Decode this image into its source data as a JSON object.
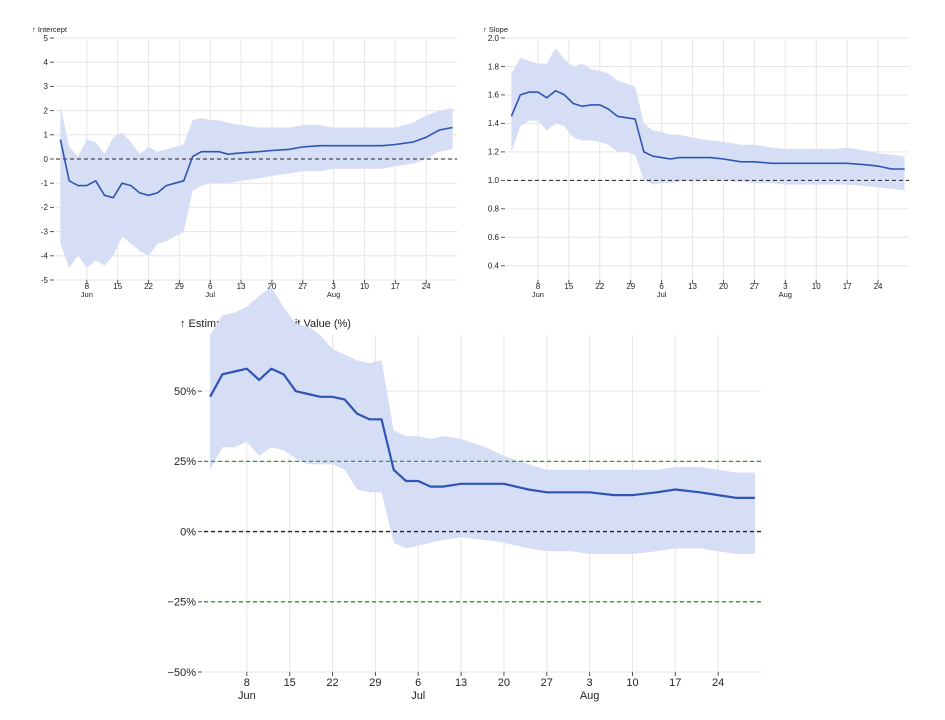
{
  "colors": {
    "band": "#d6def5",
    "line": "#2f55b3",
    "reference": "#222222",
    "threshold": "#2e9e2e",
    "grid": "#e6e6e6"
  },
  "x_axis_ticks": [
    "8",
    "15",
    "22",
    "29",
    "6",
    "13",
    "20",
    "27",
    "3",
    "10",
    "17",
    "24"
  ],
  "x_axis_months": [
    "Jun",
    "Jul",
    "Aug"
  ],
  "chart_data": [
    {
      "type": "area",
      "title": "↑ Intercept",
      "xlabel": "",
      "ylabel": "Intercept",
      "ylim": [
        -5,
        5
      ],
      "yticks": [
        "-5",
        "-4",
        "-3",
        "-2",
        "-1",
        "0",
        "1",
        "2",
        "3",
        "4",
        "5"
      ],
      "reference_lines": [
        {
          "y": 0,
          "style": "dashed",
          "color": "#222222"
        }
      ],
      "x": [
        "2023-06-02",
        "2023-06-04",
        "2023-06-06",
        "2023-06-08",
        "2023-06-10",
        "2023-06-12",
        "2023-06-14",
        "2023-06-16",
        "2023-06-18",
        "2023-06-20",
        "2023-06-22",
        "2023-06-24",
        "2023-06-26",
        "2023-06-28",
        "2023-06-30",
        "2023-07-02",
        "2023-07-04",
        "2023-07-06",
        "2023-07-08",
        "2023-07-10",
        "2023-07-13",
        "2023-07-17",
        "2023-07-20",
        "2023-07-24",
        "2023-07-27",
        "2023-07-31",
        "2023-08-03",
        "2023-08-07",
        "2023-08-10",
        "2023-08-14",
        "2023-08-17",
        "2023-08-21",
        "2023-08-24",
        "2023-08-27",
        "2023-08-30"
      ],
      "series": [
        {
          "role": "estimate",
          "values": [
            0.8,
            -0.9,
            -1.1,
            -1.1,
            -0.9,
            -1.5,
            -1.6,
            -1.0,
            -1.1,
            -1.4,
            -1.5,
            -1.4,
            -1.1,
            -1.0,
            -0.9,
            0.1,
            0.3,
            0.3,
            0.3,
            0.2,
            0.25,
            0.3,
            0.35,
            0.4,
            0.5,
            0.55,
            0.55,
            0.55,
            0.55,
            0.55,
            0.6,
            0.7,
            0.9,
            1.2,
            1.3
          ]
        },
        {
          "role": "upper",
          "values": [
            2.2,
            0.5,
            0.1,
            0.8,
            0.7,
            0.2,
            0.9,
            1.1,
            0.7,
            0.2,
            0.5,
            0.3,
            0.4,
            0.5,
            0.6,
            1.6,
            1.7,
            1.6,
            1.6,
            1.5,
            1.4,
            1.3,
            1.3,
            1.3,
            1.4,
            1.4,
            1.3,
            1.3,
            1.3,
            1.3,
            1.3,
            1.5,
            1.8,
            2.0,
            2.1
          ]
        },
        {
          "role": "lower",
          "values": [
            -3.5,
            -4.5,
            -4.0,
            -4.5,
            -4.2,
            -4.4,
            -4.0,
            -3.2,
            -3.5,
            -3.8,
            -4.0,
            -3.5,
            -3.4,
            -3.2,
            -3.0,
            -1.3,
            -1.1,
            -1.0,
            -1.0,
            -1.0,
            -0.9,
            -0.8,
            -0.7,
            -0.6,
            -0.5,
            -0.5,
            -0.4,
            -0.4,
            -0.4,
            -0.4,
            -0.3,
            -0.2,
            0.0,
            0.3,
            0.4
          ]
        }
      ]
    },
    {
      "type": "area",
      "title": "↑ Slope",
      "xlabel": "",
      "ylabel": "Slope",
      "ylim": [
        0.3,
        2.0
      ],
      "yticks": [
        "0.4",
        "0.6",
        "0.8",
        "1.0",
        "1.2",
        "1.4",
        "1.6",
        "1.8",
        "2.0"
      ],
      "reference_lines": [
        {
          "y": 1.0,
          "style": "dashed",
          "color": "#222222"
        }
      ],
      "x": [
        "2023-06-02",
        "2023-06-04",
        "2023-06-06",
        "2023-06-08",
        "2023-06-10",
        "2023-06-12",
        "2023-06-14",
        "2023-06-16",
        "2023-06-18",
        "2023-06-20",
        "2023-06-22",
        "2023-06-24",
        "2023-06-26",
        "2023-06-28",
        "2023-06-30",
        "2023-07-02",
        "2023-07-04",
        "2023-07-06",
        "2023-07-08",
        "2023-07-10",
        "2023-07-13",
        "2023-07-17",
        "2023-07-20",
        "2023-07-24",
        "2023-07-27",
        "2023-07-31",
        "2023-08-03",
        "2023-08-07",
        "2023-08-10",
        "2023-08-14",
        "2023-08-17",
        "2023-08-21",
        "2023-08-24",
        "2023-08-27",
        "2023-08-30"
      ],
      "series": [
        {
          "role": "estimate",
          "values": [
            1.45,
            1.6,
            1.62,
            1.62,
            1.58,
            1.63,
            1.6,
            1.54,
            1.52,
            1.53,
            1.53,
            1.5,
            1.45,
            1.44,
            1.43,
            1.2,
            1.17,
            1.16,
            1.15,
            1.16,
            1.16,
            1.16,
            1.15,
            1.13,
            1.13,
            1.12,
            1.12,
            1.12,
            1.12,
            1.12,
            1.12,
            1.11,
            1.1,
            1.08,
            1.08
          ]
        },
        {
          "role": "upper",
          "values": [
            1.75,
            1.86,
            1.84,
            1.82,
            1.82,
            1.93,
            1.85,
            1.8,
            1.82,
            1.78,
            1.77,
            1.75,
            1.7,
            1.68,
            1.66,
            1.4,
            1.35,
            1.34,
            1.32,
            1.32,
            1.3,
            1.28,
            1.27,
            1.25,
            1.25,
            1.23,
            1.22,
            1.22,
            1.22,
            1.22,
            1.23,
            1.21,
            1.19,
            1.18,
            1.17
          ]
        },
        {
          "role": "lower",
          "values": [
            1.2,
            1.38,
            1.42,
            1.42,
            1.35,
            1.4,
            1.38,
            1.3,
            1.28,
            1.28,
            1.27,
            1.25,
            1.2,
            1.2,
            1.18,
            1.0,
            0.97,
            0.98,
            0.98,
            0.99,
            1.0,
            1.0,
            1.0,
            0.99,
            0.98,
            0.98,
            0.97,
            0.97,
            0.97,
            0.97,
            0.97,
            0.96,
            0.95,
            0.94,
            0.93
          ]
        }
      ]
    },
    {
      "type": "area",
      "title": "↑ Estimated Bias at Limit Value (%)",
      "xlabel": "",
      "ylabel": "Estimated Bias at Limit Value (%)",
      "ylim": [
        -50,
        70
      ],
      "yticks": [
        "−50%",
        "−25%",
        "0%",
        "25%",
        "50%"
      ],
      "reference_lines": [
        {
          "y": 0,
          "style": "dashed",
          "color": "#222222"
        },
        {
          "y": 25,
          "style": "dashed",
          "color": "#2e9e2e"
        },
        {
          "y": -25,
          "style": "dashed",
          "color": "#2e9e2e"
        }
      ],
      "x": [
        "2023-06-02",
        "2023-06-04",
        "2023-06-06",
        "2023-06-08",
        "2023-06-10",
        "2023-06-12",
        "2023-06-14",
        "2023-06-16",
        "2023-06-18",
        "2023-06-20",
        "2023-06-22",
        "2023-06-24",
        "2023-06-26",
        "2023-06-28",
        "2023-06-30",
        "2023-07-02",
        "2023-07-04",
        "2023-07-06",
        "2023-07-08",
        "2023-07-10",
        "2023-07-13",
        "2023-07-17",
        "2023-07-20",
        "2023-07-24",
        "2023-07-27",
        "2023-07-31",
        "2023-08-03",
        "2023-08-07",
        "2023-08-10",
        "2023-08-14",
        "2023-08-17",
        "2023-08-21",
        "2023-08-24",
        "2023-08-27",
        "2023-08-30"
      ],
      "series": [
        {
          "role": "estimate",
          "values": [
            48,
            56,
            57,
            58,
            54,
            58,
            56,
            50,
            49,
            48,
            48,
            47,
            42,
            40,
            40,
            22,
            18,
            18,
            16,
            16,
            17,
            17,
            17,
            15,
            14,
            14,
            14,
            13,
            13,
            14,
            15,
            14,
            13,
            12,
            12
          ]
        },
        {
          "role": "upper",
          "values": [
            70,
            77,
            78,
            80,
            84,
            87,
            80,
            74,
            73,
            70,
            65,
            63,
            61,
            60,
            61,
            36,
            34,
            34,
            33,
            34,
            33,
            30,
            27,
            24,
            22,
            22,
            22,
            22,
            22,
            22,
            23,
            23,
            22,
            21,
            21
          ]
        },
        {
          "role": "lower",
          "values": [
            22,
            30,
            30,
            32,
            27,
            30,
            29,
            26,
            24,
            24,
            24,
            22,
            15,
            14,
            14,
            -4,
            -6,
            -5,
            -4,
            -3,
            -2,
            -3,
            -4,
            -6,
            -7,
            -7,
            -8,
            -8,
            -8,
            -7,
            -6,
            -6,
            -7,
            -8,
            -8
          ]
        }
      ]
    }
  ]
}
